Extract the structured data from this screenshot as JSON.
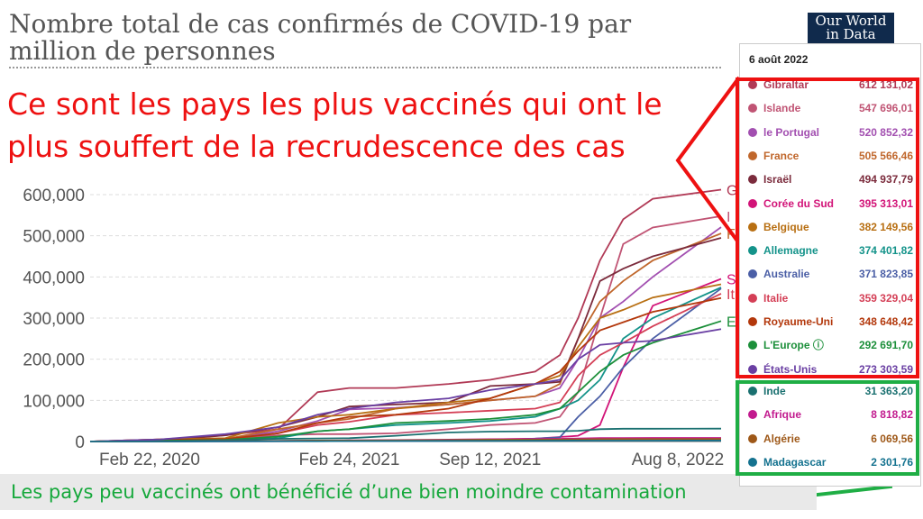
{
  "header": {
    "title": "Nombre total de cas confirmés de COVID-19 par million de personnes",
    "logo_line1": "Our World",
    "logo_line2": "in Data"
  },
  "annotations": {
    "claim": "Ce sont les pays les plus vaccinés qui ont le plus souffert de la recrudescence des cas",
    "claim_bottom": "Les pays peu vaccinés ont bénéficié d’une bien moindre contamination",
    "box_top_color": "#ee1111",
    "box_bottom_color": "#1fae45"
  },
  "tooltip": {
    "date": "6 août 2022",
    "rows": [
      {
        "name": "Gibraltar",
        "value": "612 131,02",
        "color": "#b13a56"
      },
      {
        "name": "Islande",
        "value": "547 696,01",
        "color": "#c05474"
      },
      {
        "name": "le Portugal",
        "value": "520 852,32",
        "color": "#a24fb0"
      },
      {
        "name": "France",
        "value": "505 566,46",
        "color": "#c0672c"
      },
      {
        "name": "Israël",
        "value": "494 937,79",
        "color": "#7b2b3c"
      },
      {
        "name": "Corée du Sud",
        "value": "395 313,01",
        "color": "#d21478"
      },
      {
        "name": "Belgique",
        "value": "382 149,56",
        "color": "#b86f12"
      },
      {
        "name": "Allemagne",
        "value": "374 401,82",
        "color": "#14938a"
      },
      {
        "name": "Australie",
        "value": "371 823,85",
        "color": "#4b5fa6"
      },
      {
        "name": "Italie",
        "value": "359 329,04",
        "color": "#d43f56"
      },
      {
        "name": "Royaume-Uni",
        "value": "348 648,42",
        "color": "#b3380c"
      },
      {
        "name": "L'Europe ⓘ",
        "value": "292 691,70",
        "color": "#1c8f3a"
      },
      {
        "name": "États-Unis",
        "value": "273 303,59",
        "color": "#6a3fa3"
      },
      {
        "name": "Inde",
        "value": "31 363,20",
        "color": "#1a7070"
      },
      {
        "name": "Afrique",
        "value": "8 818,82",
        "color": "#c21a8e"
      },
      {
        "name": "Algérie",
        "value": "6 069,56",
        "color": "#9e5818"
      },
      {
        "name": "Madagascar",
        "value": "2 301,76",
        "color": "#14728f"
      }
    ]
  },
  "chart_data": {
    "type": "line",
    "title": "Nombre total de cas confirmés de COVID-19 par million de personnes",
    "xlabel": "",
    "ylabel": "",
    "x": [
      "2020-02-22",
      "2020-06-01",
      "2020-09-01",
      "2020-11-15",
      "2021-01-10",
      "2021-02-24",
      "2021-05-01",
      "2021-07-15",
      "2021-09-12",
      "2021-11-15",
      "2021-12-20",
      "2022-01-15",
      "2022-02-15",
      "2022-03-20",
      "2022-05-01",
      "2022-08-06"
    ],
    "x_ticks": [
      "Feb 22, 2020",
      "Feb 24, 2021",
      "Sep 12, 2021",
      "Aug 8, 2022"
    ],
    "y_ticks": [
      "0",
      "100,000",
      "200,000",
      "300,000",
      "400,000",
      "500,000",
      "600,000"
    ],
    "ylim": [
      0,
      620000
    ],
    "grid": true,
    "series": [
      {
        "name": "Gibraltar",
        "color": "#b13a56",
        "values": [
          0,
          5000,
          15000,
          30000,
          120000,
          130000,
          130000,
          140000,
          150000,
          170000,
          210000,
          300000,
          440000,
          540000,
          590000,
          612131
        ]
      },
      {
        "name": "Islande",
        "color": "#c05474",
        "values": [
          0,
          5000,
          7000,
          15000,
          18000,
          18000,
          20000,
          30000,
          40000,
          45000,
          60000,
          120000,
          300000,
          480000,
          520000,
          547696
        ]
      },
      {
        "name": "le Portugal",
        "color": "#a24fb0",
        "values": [
          0,
          4000,
          6000,
          25000,
          50000,
          78000,
          82000,
          90000,
          100000,
          110000,
          130000,
          200000,
          300000,
          340000,
          400000,
          520852
        ]
      },
      {
        "name": "France",
        "color": "#c0672c",
        "values": [
          0,
          3000,
          6000,
          30000,
          45000,
          55000,
          80000,
          90000,
          100000,
          110000,
          140000,
          250000,
          340000,
          390000,
          440000,
          505566
        ]
      },
      {
        "name": "Israël",
        "color": "#7b2b3c",
        "values": [
          0,
          2000,
          15000,
          35000,
          60000,
          85000,
          90000,
          95000,
          135000,
          140000,
          145000,
          250000,
          390000,
          420000,
          450000,
          494938
        ]
      },
      {
        "name": "Corée du Sud",
        "color": "#d21478",
        "values": [
          0,
          200,
          400,
          600,
          1200,
          1700,
          2500,
          3500,
          5000,
          7000,
          11000,
          14000,
          40000,
          180000,
          330000,
          395313
        ]
      },
      {
        "name": "Belgique",
        "color": "#b86f12",
        "values": [
          0,
          5000,
          8000,
          45000,
          60000,
          65000,
          80000,
          95000,
          105000,
          140000,
          160000,
          230000,
          300000,
          320000,
          350000,
          382150
        ]
      },
      {
        "name": "Allemagne",
        "color": "#14938a",
        "values": [
          0,
          2000,
          3000,
          8000,
          25000,
          30000,
          40000,
          45000,
          50000,
          60000,
          80000,
          100000,
          150000,
          250000,
          300000,
          374402
        ]
      },
      {
        "name": "Australie",
        "color": "#4b5fa6",
        "values": [
          0,
          300,
          1000,
          1100,
          1100,
          1100,
          1200,
          1500,
          3000,
          7000,
          10000,
          60000,
          110000,
          180000,
          250000,
          371824
        ]
      },
      {
        "name": "Italie",
        "color": "#d43f56",
        "values": [
          0,
          4000,
          5000,
          20000,
          40000,
          48000,
          65000,
          70000,
          75000,
          80000,
          95000,
          160000,
          210000,
          240000,
          280000,
          359329
        ]
      },
      {
        "name": "Royaume-Uni",
        "color": "#b3380c",
        "values": [
          0,
          4000,
          6000,
          20000,
          45000,
          60000,
          65000,
          80000,
          105000,
          140000,
          170000,
          220000,
          270000,
          290000,
          315000,
          348648
        ]
      },
      {
        "name": "L'Europe ⓘ",
        "color": "#1c8f3a",
        "values": [
          0,
          2000,
          4000,
          12000,
          25000,
          30000,
          45000,
          50000,
          55000,
          65000,
          80000,
          120000,
          170000,
          210000,
          240000,
          292692
        ]
      },
      {
        "name": "États-Unis",
        "color": "#6a3fa3",
        "values": [
          0,
          5000,
          18000,
          35000,
          65000,
          80000,
          95000,
          105000,
          125000,
          140000,
          150000,
          200000,
          235000,
          240000,
          245000,
          273304
        ]
      },
      {
        "name": "Inde",
        "color": "#1a7070",
        "values": [
          0,
          200,
          3000,
          6500,
          7500,
          8000,
          14000,
          22000,
          24000,
          25000,
          25000,
          26000,
          30000,
          31000,
          31000,
          31363
        ]
      },
      {
        "name": "Afrique",
        "color": "#c21a8e",
        "values": [
          0,
          100,
          1000,
          1600,
          2300,
          2900,
          3400,
          4600,
          5800,
          6200,
          6500,
          7500,
          8300,
          8600,
          8700,
          8819
        ]
      },
      {
        "name": "Algérie",
        "color": "#9e5818",
        "values": [
          0,
          200,
          1100,
          1600,
          2400,
          2500,
          2800,
          3600,
          4500,
          4700,
          4800,
          5200,
          5800,
          5900,
          5950,
          6070
        ]
      },
      {
        "name": "Madagascar",
        "color": "#14728f",
        "values": [
          0,
          100,
          500,
          600,
          700,
          1000,
          1400,
          1500,
          1600,
          1650,
          1700,
          2100,
          2200,
          2250,
          2280,
          2302
        ]
      }
    ],
    "end_labels": [
      "G",
      "I",
      "F",
      "S",
      "E",
      "It"
    ]
  }
}
